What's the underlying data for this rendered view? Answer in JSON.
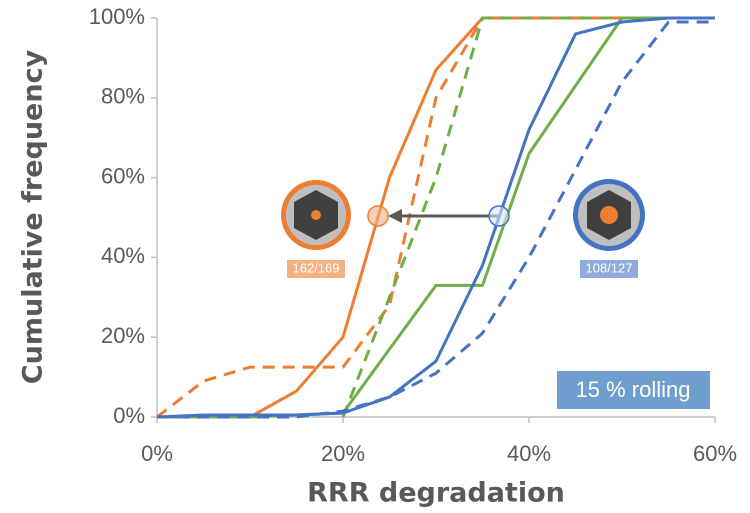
{
  "chart_data": {
    "type": "line",
    "x_label": "RRR degradation",
    "y_label": "Cumulative frequency",
    "x": [
      0,
      5,
      10,
      15,
      20,
      25,
      30,
      35,
      40,
      45,
      50,
      55,
      60
    ],
    "series": [
      {
        "color": "#ed7d31",
        "dash": false,
        "values": [
          0,
          0,
          0,
          6.5,
          20,
          60,
          87,
          100,
          100,
          100,
          100,
          100,
          100
        ]
      },
      {
        "color": "#ed7d31",
        "dash": true,
        "values": [
          0,
          9,
          12.5,
          12.5,
          12.5,
          28,
          80,
          100,
          100,
          100,
          100,
          100,
          100
        ]
      },
      {
        "color": "#70ad47",
        "dash": false,
        "values": [
          0,
          0,
          0,
          0.5,
          1,
          17,
          33,
          33,
          66,
          83,
          100,
          100,
          100
        ]
      },
      {
        "color": "#70ad47",
        "dash": true,
        "values": [
          null,
          null,
          null,
          null,
          0,
          30,
          60,
          100,
          100,
          100,
          100,
          100,
          100
        ]
      },
      {
        "color": "#4472c4",
        "dash": false,
        "values": [
          0,
          0.5,
          0.5,
          0.5,
          1,
          5,
          14,
          38,
          72,
          96,
          99,
          100,
          100
        ]
      },
      {
        "color": "#4472c4",
        "dash": true,
        "values": [
          0,
          0,
          0,
          0,
          1.5,
          5,
          11,
          21,
          40,
          62,
          84,
          99,
          99
        ]
      }
    ],
    "xlim": [
      0,
      60
    ],
    "xticks": [
      {
        "value": 0,
        "label": "0%"
      },
      {
        "value": 20,
        "label": "20%"
      },
      {
        "value": 40,
        "label": "40%"
      },
      {
        "value": 60,
        "label": "60%"
      }
    ],
    "ylim": [
      0,
      100
    ],
    "yticks": [
      {
        "value": 0,
        "label": "0%"
      },
      {
        "value": 20,
        "label": "20%"
      },
      {
        "value": 40,
        "label": "40%"
      },
      {
        "value": 60,
        "label": "60%"
      },
      {
        "value": 80,
        "label": "80%"
      },
      {
        "value": 100,
        "label": "100%"
      }
    ],
    "annotations": [
      "15 % rolling",
      "162/169",
      "108/127"
    ]
  }
}
